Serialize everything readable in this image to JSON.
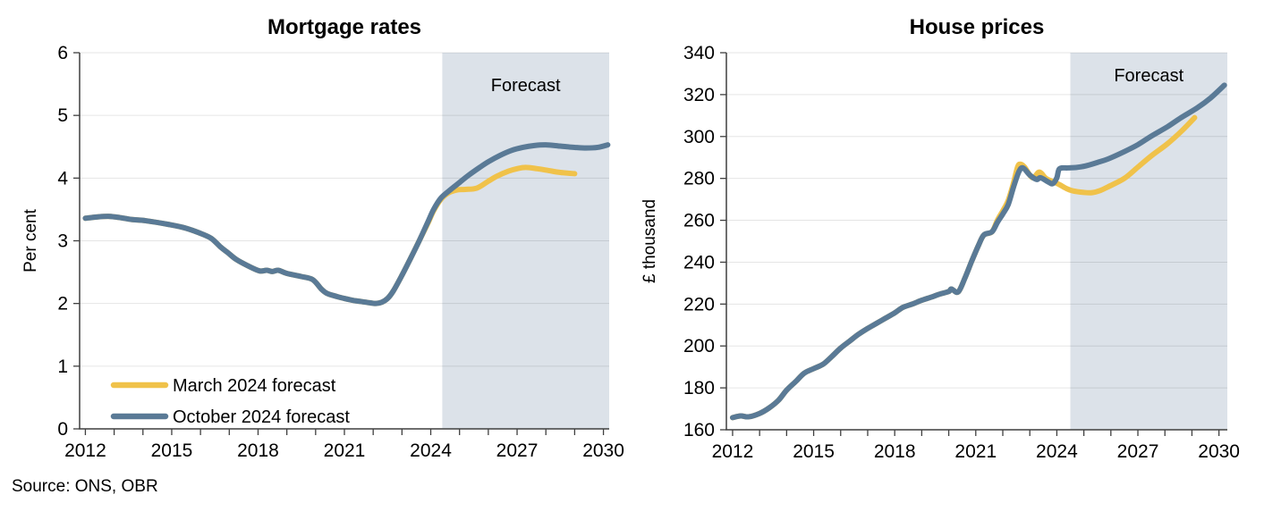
{
  "page": {
    "source_note": "Source: ONS, OBR"
  },
  "colors": {
    "march_yellow": "#F0C24A",
    "october_blue": "#5A7A96",
    "forecast_band": "#DCE2E9",
    "axis": "#3F3F3F",
    "text": "#000000"
  },
  "chart_data": [
    {
      "type": "line",
      "title": "Mortgage rates",
      "xlabel": "",
      "ylabel": "Per cent",
      "ylim": [
        0,
        6
      ],
      "yticks": [
        0,
        1,
        2,
        3,
        4,
        5,
        6
      ],
      "xlim": [
        2011.8,
        2030.2
      ],
      "xtick_labels": [
        2012,
        2015,
        2018,
        2021,
        2024,
        2027,
        2030
      ],
      "minor_tick_interval": 1,
      "grid": "horizontal",
      "forecast_band": {
        "label": "Forecast",
        "start": 2024.4
      },
      "legend": {
        "position": "lower-left",
        "entries": [
          {
            "label": "March 2024 forecast",
            "series": 0
          },
          {
            "label": "October 2024 forecast",
            "series": 1
          }
        ]
      },
      "series": [
        {
          "name": "March 2024 forecast",
          "color": "#F0C24A",
          "points": [
            [
              2012.0,
              3.36
            ],
            [
              2012.4,
              3.38
            ],
            [
              2012.8,
              3.39
            ],
            [
              2013.2,
              3.37
            ],
            [
              2013.6,
              3.34
            ],
            [
              2014.1,
              3.32
            ],
            [
              2014.9,
              3.26
            ],
            [
              2015.5,
              3.2
            ],
            [
              2016.1,
              3.1
            ],
            [
              2016.4,
              3.03
            ],
            [
              2016.7,
              2.9
            ],
            [
              2016.95,
              2.81
            ],
            [
              2017.25,
              2.7
            ],
            [
              2017.65,
              2.6
            ],
            [
              2018.05,
              2.52
            ],
            [
              2018.3,
              2.53
            ],
            [
              2018.5,
              2.51
            ],
            [
              2018.7,
              2.53
            ],
            [
              2019.0,
              2.48
            ],
            [
              2019.5,
              2.43
            ],
            [
              2019.9,
              2.38
            ],
            [
              2020.2,
              2.23
            ],
            [
              2020.4,
              2.16
            ],
            [
              2020.75,
              2.11
            ],
            [
              2021.0,
              2.08
            ],
            [
              2021.3,
              2.05
            ],
            [
              2021.6,
              2.03
            ],
            [
              2021.9,
              2.01
            ],
            [
              2022.1,
              2.0
            ],
            [
              2022.3,
              2.02
            ],
            [
              2022.5,
              2.08
            ],
            [
              2022.7,
              2.2
            ],
            [
              2023.0,
              2.45
            ],
            [
              2023.3,
              2.72
            ],
            [
              2023.6,
              3.0
            ],
            [
              2023.9,
              3.28
            ],
            [
              2024.1,
              3.48
            ],
            [
              2024.35,
              3.66
            ],
            [
              2024.6,
              3.76
            ],
            [
              2024.9,
              3.81
            ],
            [
              2025.2,
              3.82
            ],
            [
              2025.6,
              3.84
            ],
            [
              2026.0,
              3.95
            ],
            [
              2026.3,
              4.03
            ],
            [
              2026.7,
              4.11
            ],
            [
              2027.0,
              4.15
            ],
            [
              2027.3,
              4.17
            ],
            [
              2027.7,
              4.15
            ],
            [
              2028.1,
              4.12
            ],
            [
              2028.5,
              4.09
            ],
            [
              2029.0,
              4.07
            ]
          ]
        },
        {
          "name": "October 2024 forecast",
          "color": "#5A7A96",
          "points": [
            [
              2012.0,
              3.36
            ],
            [
              2012.4,
              3.38
            ],
            [
              2012.8,
              3.39
            ],
            [
              2013.2,
              3.37
            ],
            [
              2013.6,
              3.34
            ],
            [
              2014.1,
              3.32
            ],
            [
              2014.9,
              3.26
            ],
            [
              2015.5,
              3.2
            ],
            [
              2016.1,
              3.1
            ],
            [
              2016.4,
              3.03
            ],
            [
              2016.7,
              2.9
            ],
            [
              2016.95,
              2.81
            ],
            [
              2017.25,
              2.7
            ],
            [
              2017.65,
              2.6
            ],
            [
              2018.05,
              2.52
            ],
            [
              2018.3,
              2.53
            ],
            [
              2018.5,
              2.51
            ],
            [
              2018.7,
              2.53
            ],
            [
              2019.0,
              2.48
            ],
            [
              2019.5,
              2.43
            ],
            [
              2019.9,
              2.38
            ],
            [
              2020.2,
              2.23
            ],
            [
              2020.4,
              2.16
            ],
            [
              2020.75,
              2.11
            ],
            [
              2021.0,
              2.08
            ],
            [
              2021.3,
              2.05
            ],
            [
              2021.6,
              2.03
            ],
            [
              2021.9,
              2.01
            ],
            [
              2022.1,
              2.0
            ],
            [
              2022.3,
              2.02
            ],
            [
              2022.5,
              2.08
            ],
            [
              2022.7,
              2.2
            ],
            [
              2023.0,
              2.45
            ],
            [
              2023.3,
              2.72
            ],
            [
              2023.6,
              3.0
            ],
            [
              2023.9,
              3.3
            ],
            [
              2024.1,
              3.5
            ],
            [
              2024.35,
              3.68
            ],
            [
              2024.7,
              3.82
            ],
            [
              2025.0,
              3.93
            ],
            [
              2025.3,
              4.04
            ],
            [
              2025.7,
              4.17
            ],
            [
              2026.0,
              4.26
            ],
            [
              2026.4,
              4.36
            ],
            [
              2026.8,
              4.44
            ],
            [
              2027.2,
              4.49
            ],
            [
              2027.6,
              4.52
            ],
            [
              2028.0,
              4.53
            ],
            [
              2028.5,
              4.51
            ],
            [
              2029.0,
              4.49
            ],
            [
              2029.4,
              4.48
            ],
            [
              2029.8,
              4.49
            ],
            [
              2030.15,
              4.53
            ]
          ]
        }
      ]
    },
    {
      "type": "line",
      "title": "House prices",
      "xlabel": "",
      "ylabel": "£ thousand",
      "ylim": [
        160,
        340
      ],
      "yticks": [
        160,
        180,
        200,
        220,
        240,
        260,
        280,
        300,
        320,
        340
      ],
      "xlim": [
        2011.77,
        2030.31
      ],
      "xtick_labels": [
        2012,
        2015,
        2018,
        2021,
        2024,
        2027,
        2030
      ],
      "minor_tick_interval": 1,
      "grid": "horizontal",
      "forecast_band": {
        "label": "Forecast",
        "start": 2024.5
      },
      "legend": null,
      "series": [
        {
          "name": "March 2024 forecast",
          "color": "#F0C24A",
          "points": [
            [
              2012.0,
              165.8
            ],
            [
              2012.3,
              166.6
            ],
            [
              2012.6,
              166.2
            ],
            [
              2013.0,
              167.8
            ],
            [
              2013.35,
              170.4
            ],
            [
              2013.7,
              174.1
            ],
            [
              2014.0,
              178.9
            ],
            [
              2014.35,
              183.2
            ],
            [
              2014.65,
              187.0
            ],
            [
              2015.0,
              189.2
            ],
            [
              2015.35,
              191.3
            ],
            [
              2015.65,
              194.7
            ],
            [
              2016.0,
              199.0
            ],
            [
              2016.35,
              202.5
            ],
            [
              2016.65,
              205.5
            ],
            [
              2017.0,
              208.4
            ],
            [
              2017.3,
              210.6
            ],
            [
              2017.65,
              213.2
            ],
            [
              2018.0,
              215.8
            ],
            [
              2018.3,
              218.4
            ],
            [
              2018.65,
              220.0
            ],
            [
              2019.0,
              221.8
            ],
            [
              2019.35,
              223.3
            ],
            [
              2019.65,
              224.7
            ],
            [
              2020.0,
              226.0
            ],
            [
              2020.1,
              227.2
            ],
            [
              2020.35,
              225.8
            ],
            [
              2020.6,
              232.5
            ],
            [
              2020.85,
              240.5
            ],
            [
              2021.1,
              248.0
            ],
            [
              2021.3,
              253.0
            ],
            [
              2021.6,
              254.5
            ],
            [
              2021.8,
              260.0
            ],
            [
              2022.0,
              264.5
            ],
            [
              2022.2,
              269.5
            ],
            [
              2022.4,
              278.0
            ],
            [
              2022.55,
              285.5
            ],
            [
              2022.65,
              286.8
            ],
            [
              2022.8,
              285.5
            ],
            [
              2023.1,
              280.3
            ],
            [
              2023.35,
              283.0
            ],
            [
              2023.6,
              280.0
            ],
            [
              2023.85,
              278.5
            ],
            [
              2024.1,
              277.0
            ],
            [
              2024.35,
              275.2
            ],
            [
              2024.6,
              274.0
            ],
            [
              2025.0,
              273.3
            ],
            [
              2025.3,
              273.2
            ],
            [
              2025.6,
              274.2
            ],
            [
              2025.9,
              276.0
            ],
            [
              2026.5,
              280.0
            ],
            [
              2027.0,
              285.4
            ],
            [
              2027.5,
              290.8
            ],
            [
              2028.1,
              296.6
            ],
            [
              2028.65,
              303.0
            ],
            [
              2029.1,
              309.0
            ]
          ]
        },
        {
          "name": "October 2024 forecast",
          "color": "#5A7A96",
          "points": [
            [
              2012.0,
              165.8
            ],
            [
              2012.3,
              166.6
            ],
            [
              2012.6,
              166.2
            ],
            [
              2013.0,
              167.8
            ],
            [
              2013.35,
              170.4
            ],
            [
              2013.7,
              174.1
            ],
            [
              2014.0,
              178.9
            ],
            [
              2014.35,
              183.2
            ],
            [
              2014.65,
              187.0
            ],
            [
              2015.0,
              189.2
            ],
            [
              2015.35,
              191.3
            ],
            [
              2015.65,
              194.7
            ],
            [
              2016.0,
              199.0
            ],
            [
              2016.35,
              202.5
            ],
            [
              2016.65,
              205.5
            ],
            [
              2017.0,
              208.4
            ],
            [
              2017.3,
              210.6
            ],
            [
              2017.65,
              213.2
            ],
            [
              2018.0,
              215.8
            ],
            [
              2018.3,
              218.4
            ],
            [
              2018.65,
              220.0
            ],
            [
              2019.0,
              221.8
            ],
            [
              2019.35,
              223.3
            ],
            [
              2019.65,
              224.7
            ],
            [
              2020.0,
              226.0
            ],
            [
              2020.1,
              227.2
            ],
            [
              2020.35,
              225.8
            ],
            [
              2020.6,
              232.5
            ],
            [
              2020.85,
              240.5
            ],
            [
              2021.1,
              248.0
            ],
            [
              2021.3,
              253.0
            ],
            [
              2021.6,
              254.5
            ],
            [
              2021.8,
              259.0
            ],
            [
              2022.0,
              263.0
            ],
            [
              2022.2,
              267.5
            ],
            [
              2022.4,
              276.0
            ],
            [
              2022.6,
              283.3
            ],
            [
              2022.75,
              285.0
            ],
            [
              2023.0,
              281.6
            ],
            [
              2023.25,
              279.5
            ],
            [
              2023.4,
              280.3
            ],
            [
              2023.7,
              278.2
            ],
            [
              2023.85,
              277.5
            ],
            [
              2024.0,
              280.3
            ],
            [
              2024.1,
              284.6
            ],
            [
              2024.4,
              285.0
            ],
            [
              2024.7,
              285.2
            ],
            [
              2025.05,
              285.9
            ],
            [
              2025.5,
              287.6
            ],
            [
              2025.9,
              289.3
            ],
            [
              2026.5,
              292.8
            ],
            [
              2027.0,
              296.1
            ],
            [
              2027.5,
              300.2
            ],
            [
              2028.1,
              304.7
            ],
            [
              2028.6,
              309.0
            ],
            [
              2029.2,
              313.7
            ],
            [
              2029.7,
              318.5
            ],
            [
              2030.2,
              324.5
            ]
          ]
        }
      ]
    }
  ]
}
